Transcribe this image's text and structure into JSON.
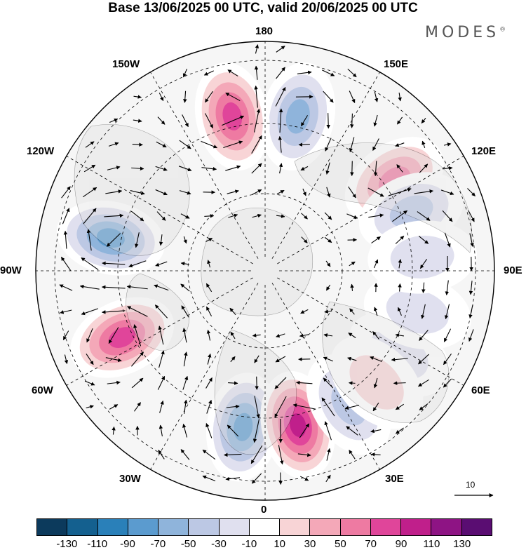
{
  "title": "Base 13/06/2025 00 UTC, valid 20/06/2025 00 UTC",
  "brand": "MODES",
  "brand_mark": "®",
  "map": {
    "projection": "north polar stereographic",
    "center": "North Pole",
    "longitude_labels": {
      "top": "180",
      "top_right": "150E",
      "upper_right": "120E",
      "right": "90E",
      "lower_right": "60E",
      "bottom_right": "30E",
      "bottom": "0",
      "bottom_left": "30W",
      "lower_left": "60W",
      "left": "90W",
      "upper_left": "120W",
      "top_left": "150W"
    },
    "vector_scale_label": "10",
    "anomaly_centers": [
      {
        "lon": 168,
        "sign": "negative",
        "level": 70
      },
      {
        "lon": -168,
        "sign": "positive",
        "level": 90
      },
      {
        "lon": 125,
        "sign": "positive",
        "level": 70
      },
      {
        "lon": 112,
        "sign": "negative",
        "level": 50
      },
      {
        "lon": -102,
        "sign": "negative",
        "level": 90
      },
      {
        "lon": -65,
        "sign": "positive",
        "level": 90
      },
      {
        "lon": -8,
        "sign": "negative",
        "level": 90
      },
      {
        "lon": 12,
        "sign": "positive",
        "level": 110
      },
      {
        "lon": 32,
        "sign": "negative",
        "level": 50
      },
      {
        "lon": 58,
        "sign": "negative",
        "level": 30
      },
      {
        "lon": 45,
        "sign": "positive",
        "level": 30
      },
      {
        "lon": 75,
        "sign": "negative",
        "level": 30
      },
      {
        "lon": 95,
        "sign": "negative",
        "level": 30
      }
    ]
  },
  "colorbar": {
    "ticks": [
      "-130",
      "-110",
      "-90",
      "-70",
      "-50",
      "-30",
      "-10",
      "10",
      "30",
      "50",
      "70",
      "90",
      "110",
      "130"
    ],
    "colors": [
      "#0c3a5c",
      "#14608f",
      "#2a80b9",
      "#5b9bcf",
      "#8fb4db",
      "#bcc8e4",
      "#e0e0ef",
      "#ffffff",
      "#f8d4d6",
      "#f4a8b8",
      "#ee7aa2",
      "#e0459a",
      "#c01f8b",
      "#8e1484",
      "#5a0d72"
    ]
  }
}
